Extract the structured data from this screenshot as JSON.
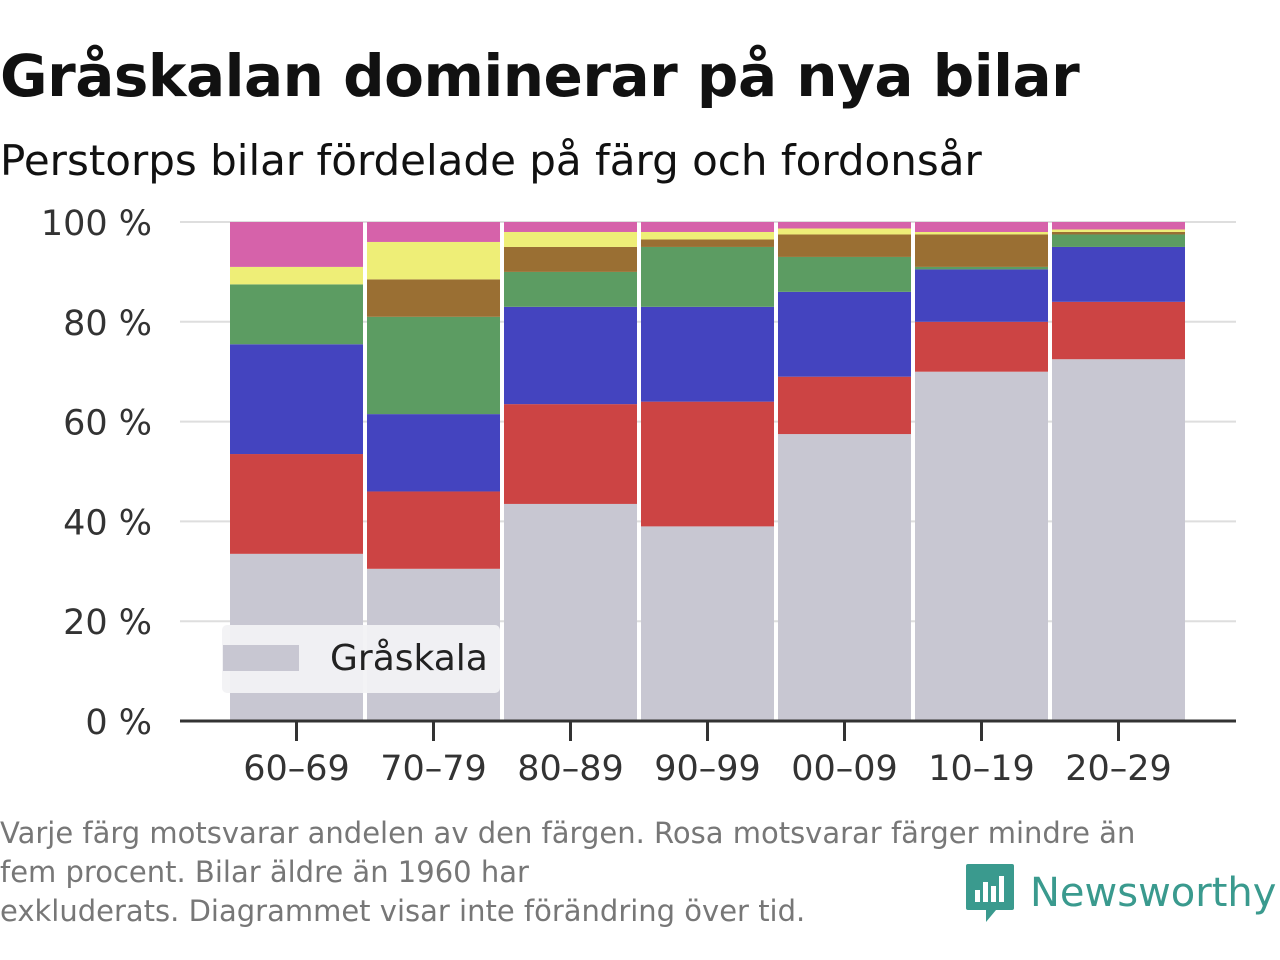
{
  "title": "Gråskalan dominerar på nya bilar",
  "subtitle": "Perstorps bilar fördelade på färg och fordonsår",
  "footnote": [
    "Varje färg motsvarar andelen av den färgen. Rosa motsvarar färger mindre än",
    "fem procent. Bilar äldre än 1960 har",
    "exkluderats. Diagrammet visar inte förändring över tid."
  ],
  "brand": {
    "name": "Newsworthy",
    "icon": "newsworthy-logo-icon"
  },
  "legend_label": "Gråskala",
  "chart_data": {
    "type": "bar",
    "stacked": true,
    "categories": [
      "60–69",
      "70–79",
      "80–89",
      "90–99",
      "00–09",
      "10–19",
      "20–29"
    ],
    "ylim": [
      0,
      100
    ],
    "yticks": [
      "0 %",
      "20 %",
      "40 %",
      "60 %",
      "80 %",
      "100 %"
    ],
    "ytick_values": [
      0,
      20,
      40,
      60,
      80,
      100
    ],
    "grid": true,
    "legend": "bottom-left",
    "series": [
      {
        "name": "Gråskala",
        "color": "#c8c7d2",
        "values": [
          33.5,
          30.5,
          43.5,
          39,
          57.5,
          70,
          72.5
        ]
      },
      {
        "color": "#cc4444",
        "values": [
          20,
          15.5,
          20,
          25,
          11.5,
          10,
          11.5
        ]
      },
      {
        "color": "#4444bf",
        "values": [
          22,
          15.5,
          19.5,
          19,
          17,
          10.5,
          11
        ]
      },
      {
        "color": "#5c9c62",
        "values": [
          12,
          19.5,
          7,
          12,
          7,
          0.5,
          2.5
        ]
      },
      {
        "color": "#9a6f33",
        "values": [
          0,
          7.5,
          5,
          1.5,
          4.5,
          6.5,
          0.5
        ]
      },
      {
        "color": "#eeee77",
        "values": [
          3.5,
          7.5,
          3,
          1.5,
          1.2,
          0.5,
          0.5
        ]
      },
      {
        "color": "#d662aa",
        "values": [
          9,
          4,
          2,
          2,
          1.3,
          2,
          1.5
        ]
      }
    ]
  }
}
